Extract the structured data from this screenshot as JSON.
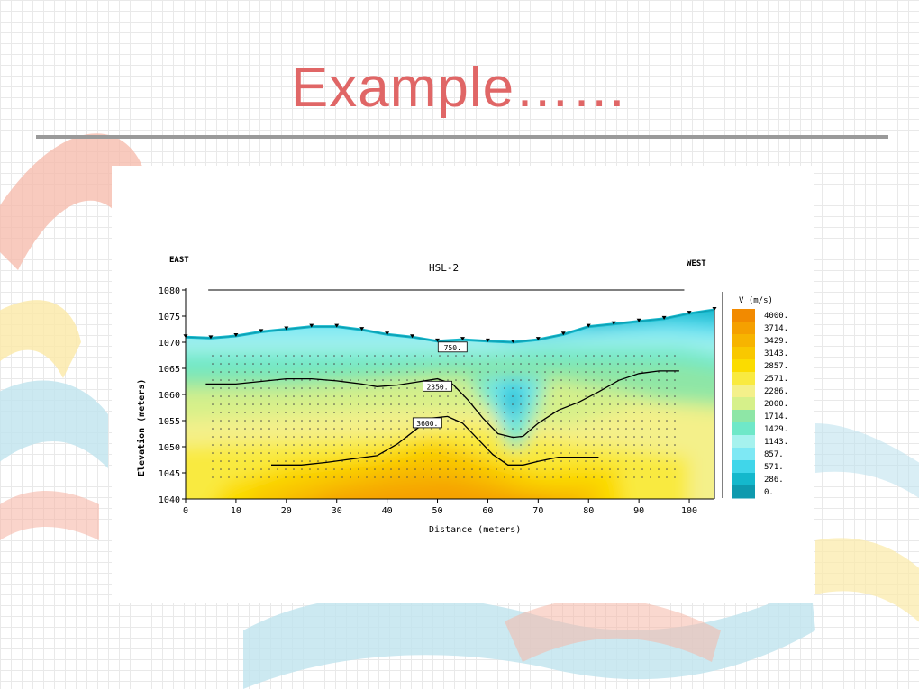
{
  "slide": {
    "title": "Example……"
  },
  "figure": {
    "left_label": "EAST",
    "right_label": "WEST",
    "profile_name": "HSL-2"
  },
  "chart_data": {
    "type": "heatmap",
    "title": "HSL-2",
    "xlabel": "Distance (meters)",
    "ylabel": "Elevation (meters)",
    "xlim": [
      0,
      105
    ],
    "ylim": [
      1040,
      1080
    ],
    "xticks": [
      0,
      10,
      20,
      30,
      40,
      50,
      60,
      70,
      80,
      90,
      100
    ],
    "xtick_labels": [
      "0",
      "10",
      "20",
      "30",
      "40",
      "50",
      "60",
      "70",
      "80",
      "90",
      "100"
    ],
    "yticks": [
      1040,
      1045,
      1050,
      1055,
      1060,
      1065,
      1070,
      1075,
      1080
    ],
    "ytick_labels": [
      "1040",
      "1045",
      "1050",
      "1055",
      "1060",
      "1065",
      "1070",
      "1075",
      "1080"
    ],
    "colorbar": {
      "title": "V (m/s)",
      "levels": [
        4000,
        3714,
        3429,
        3143,
        2857,
        2571,
        2286,
        2000,
        1714,
        1429,
        1143,
        857,
        571,
        286,
        0
      ],
      "labels": [
        "4000.",
        "3714.",
        "3429.",
        "3143.",
        "2857.",
        "2571.",
        "2286.",
        "2000.",
        "1714.",
        "1429.",
        "1143.",
        "857.",
        "571.",
        "286.",
        "0."
      ],
      "colors": [
        "#f28a00",
        "#f5a000",
        "#f7b400",
        "#f9c800",
        "#fbdc00",
        "#f9ea40",
        "#f4f08a",
        "#d6f08a",
        "#8ee6a6",
        "#6fe8c8",
        "#a6f2ee",
        "#7ee8f4",
        "#40d6ea",
        "#14b8cc",
        "#0e9aae"
      ]
    },
    "surface": {
      "x": [
        0,
        5,
        10,
        15,
        20,
        25,
        30,
        35,
        40,
        45,
        50,
        55,
        60,
        65,
        70,
        75,
        80,
        85,
        90,
        95,
        100,
        105
      ],
      "y": [
        1071,
        1070.8,
        1071.2,
        1072,
        1072.5,
        1073,
        1073,
        1072.4,
        1071.5,
        1071,
        1070.2,
        1070.5,
        1070.2,
        1070,
        1070.5,
        1071.5,
        1073,
        1073.5,
        1074,
        1074.5,
        1075.5,
        1076.2
      ]
    },
    "contours": [
      {
        "label": "750.",
        "label_pos": [
          53,
          1069
        ],
        "x": [],
        "y": []
      },
      {
        "label": "2350.",
        "label_pos": [
          50,
          1061.5
        ],
        "x": [
          4,
          10,
          15,
          20,
          25,
          30,
          35,
          38,
          42,
          46,
          50,
          53,
          56,
          59,
          62,
          65,
          67,
          70,
          74,
          78,
          82,
          86,
          90,
          94,
          98
        ],
        "y": [
          1062,
          1062,
          1062.5,
          1063,
          1063,
          1062.6,
          1062,
          1061.5,
          1061.8,
          1062.4,
          1063,
          1062,
          1059,
          1055.5,
          1052.5,
          1051.8,
          1052,
          1054.5,
          1057,
          1058.5,
          1060.5,
          1062.7,
          1064,
          1064.5,
          1064.5
        ]
      },
      {
        "label": "3600.",
        "label_pos": [
          48,
          1054.5
        ],
        "x": [
          17,
          23,
          28,
          34,
          38,
          42,
          46,
          49,
          52,
          55,
          58,
          61,
          64,
          67,
          70,
          74,
          78,
          82
        ],
        "y": [
          1046.5,
          1046.5,
          1047,
          1047.8,
          1048.3,
          1050.5,
          1053.5,
          1055.5,
          1055.8,
          1054.5,
          1051.5,
          1048.5,
          1046.5,
          1046.5,
          1047.2,
          1048,
          1048,
          1048
        ]
      }
    ],
    "geophone_line": {
      "x": [
        4.5,
        99
      ],
      "y": [
        1080,
        1080
      ]
    }
  }
}
